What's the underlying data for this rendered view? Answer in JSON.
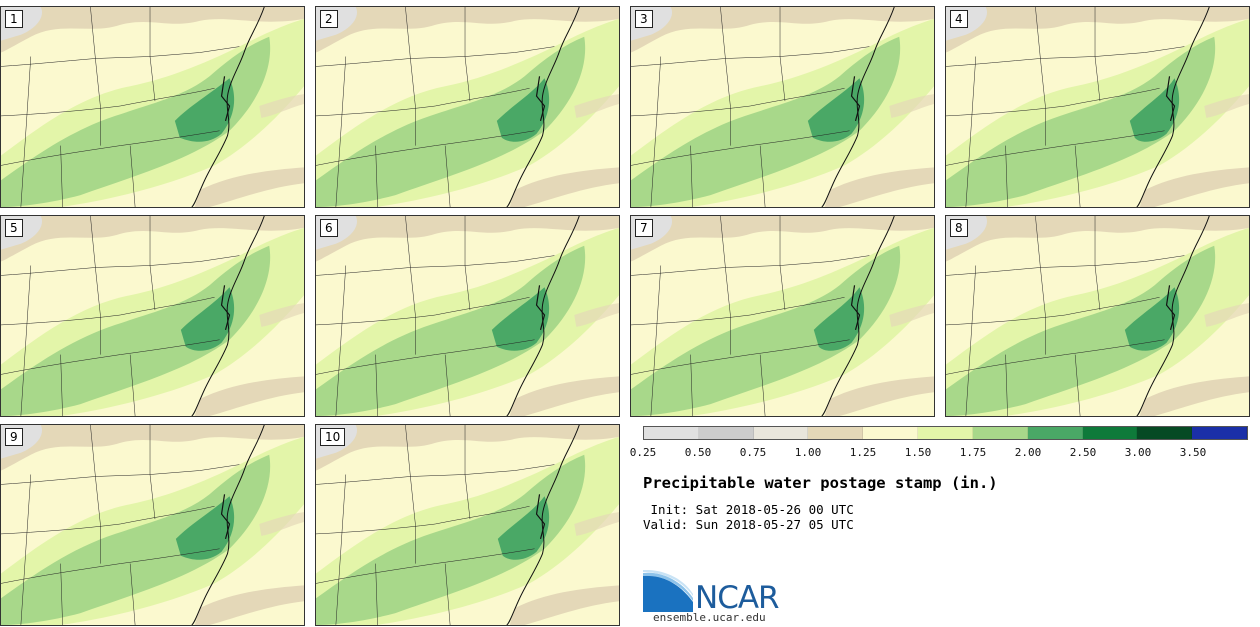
{
  "panels": [
    {
      "label": "1"
    },
    {
      "label": "2"
    },
    {
      "label": "3"
    },
    {
      "label": "4"
    },
    {
      "label": "5"
    },
    {
      "label": "6"
    },
    {
      "label": "7"
    },
    {
      "label": "8"
    },
    {
      "label": "9"
    },
    {
      "label": "10"
    }
  ],
  "legend": {
    "colors": [
      "#e0e0e0",
      "#cccccc",
      "#e9e6dc",
      "#e4d8b8",
      "#fbf9cf",
      "#e3f5a9",
      "#a8d88a",
      "#4aa866",
      "#0e7a3a",
      "#064a24",
      "#1a2fa8"
    ],
    "ticks": [
      "0.25",
      "0.50",
      "0.75",
      "1.00",
      "1.25",
      "1.50",
      "1.75",
      "2.00",
      "2.50",
      "3.00",
      "3.50"
    ]
  },
  "title": "Precipitable water postage stamp (in.)",
  "init": " Init: Sat 2018-05-26 00 UTC",
  "valid": "Valid: Sun 2018-05-27 05 UTC",
  "logo": {
    "text": "NCAR",
    "url": "ensemble.ucar.edu"
  }
}
